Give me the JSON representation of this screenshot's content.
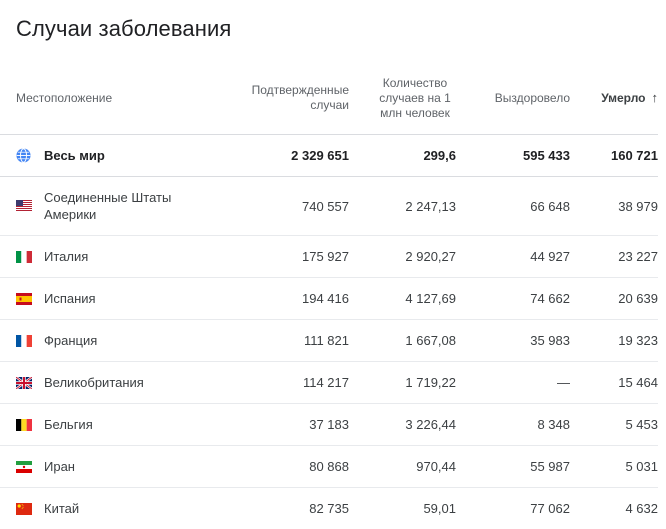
{
  "card": {
    "title": "Случаи заболевания"
  },
  "table": {
    "headers": {
      "location": "Местоположение",
      "confirmed": "Подтвержденные случаи",
      "per_million": "Количество случаев на 1 млн человек",
      "recovered": "Выздоровело",
      "deaths": "Умерло",
      "sort_arrow": "↑"
    },
    "world": {
      "name": "Весь мир",
      "icon": "globe-icon",
      "confirmed": "2 329 651",
      "per_million": "299,6",
      "recovered": "595 433",
      "deaths": "160 721"
    },
    "rows": [
      {
        "name": "Соединенные Штаты Америки",
        "icon": "usa-flag-icon",
        "confirmed": "740 557",
        "per_million": "2 247,13",
        "recovered": "66 648",
        "deaths": "38 979"
      },
      {
        "name": "Италия",
        "icon": "italy-flag-icon",
        "confirmed": "175 927",
        "per_million": "2 920,27",
        "recovered": "44 927",
        "deaths": "23 227"
      },
      {
        "name": "Испания",
        "icon": "spain-flag-icon",
        "confirmed": "194 416",
        "per_million": "4 127,69",
        "recovered": "74 662",
        "deaths": "20 639"
      },
      {
        "name": "Франция",
        "icon": "france-flag-icon",
        "confirmed": "111 821",
        "per_million": "1 667,08",
        "recovered": "35 983",
        "deaths": "19 323"
      },
      {
        "name": "Великобритания",
        "icon": "uk-flag-icon",
        "confirmed": "114 217",
        "per_million": "1 719,22",
        "recovered": "—",
        "deaths": "15 464"
      },
      {
        "name": "Бельгия",
        "icon": "belgium-flag-icon",
        "confirmed": "37 183",
        "per_million": "3 226,44",
        "recovered": "8 348",
        "deaths": "5 453"
      },
      {
        "name": "Иран",
        "icon": "iran-flag-icon",
        "confirmed": "80 868",
        "per_million": "970,44",
        "recovered": "55 987",
        "deaths": "5 031"
      },
      {
        "name": "Китай",
        "icon": "china-flag-icon",
        "confirmed": "82 735",
        "per_million": "59,01",
        "recovered": "77 062",
        "deaths": "4 632"
      }
    ]
  }
}
